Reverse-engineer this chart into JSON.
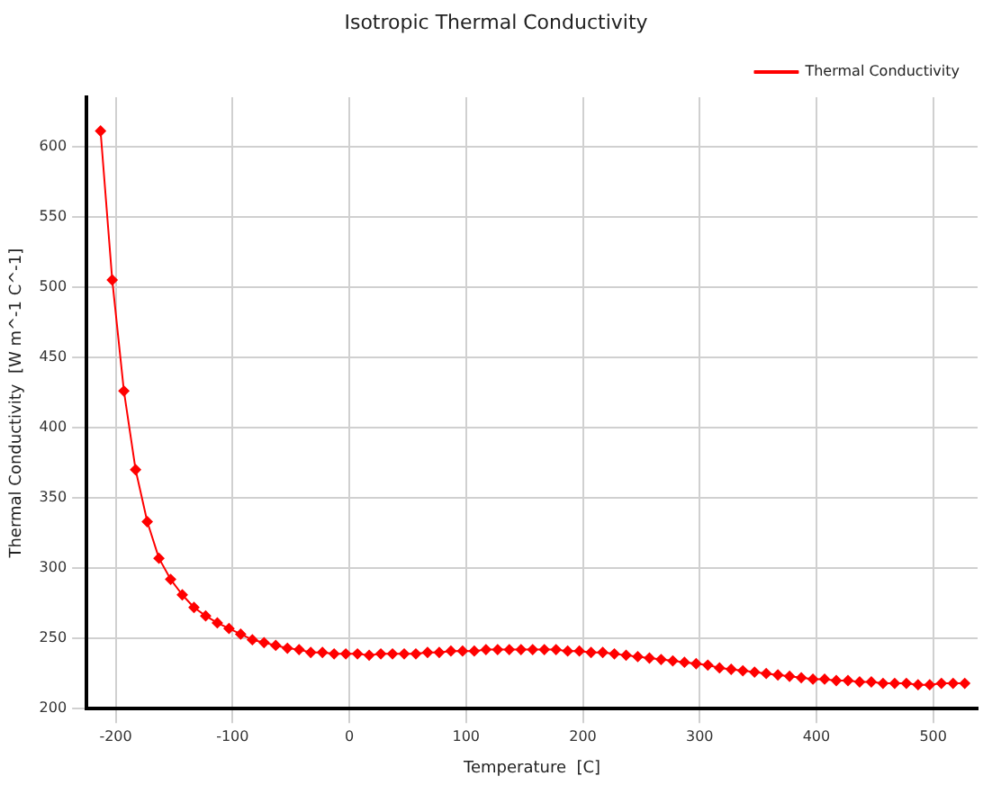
{
  "chart_data": {
    "type": "line",
    "title": "Isotropic Thermal Conductivity",
    "xlabel": "Temperature  [C]",
    "ylabel": "Thermal Conductivity  [W m^-1 C^-1]",
    "x": [
      -213,
      -203,
      -193,
      -183,
      -173,
      -163,
      -153,
      -143,
      -133,
      -123,
      -113,
      -103,
      -93,
      -83,
      -73,
      -63,
      -53,
      -43,
      -33,
      -23,
      -13,
      -3,
      7,
      17,
      27,
      37,
      47,
      57,
      67,
      77,
      87,
      97,
      107,
      117,
      127,
      137,
      147,
      157,
      167,
      177,
      187,
      197,
      207,
      217,
      227,
      237,
      247,
      257,
      267,
      277,
      287,
      297,
      307,
      317,
      327,
      337,
      347,
      357,
      367,
      377,
      387,
      397,
      407,
      417,
      427,
      437,
      447,
      457,
      467,
      477,
      487,
      497,
      507,
      517,
      527
    ],
    "series": [
      {
        "name": "Thermal Conductivity",
        "color": "#ff0000",
        "values": [
          611,
          505,
          426,
          370,
          333,
          307,
          292,
          281,
          272,
          266,
          261,
          257,
          253,
          249,
          247,
          245,
          243,
          242,
          240,
          240,
          239,
          239,
          239,
          238,
          239,
          239,
          239,
          239,
          240,
          240,
          241,
          241,
          241,
          242,
          242,
          242,
          242,
          242,
          242,
          242,
          241,
          241,
          240,
          240,
          239,
          238,
          237,
          236,
          235,
          234,
          233,
          232,
          231,
          229,
          228,
          227,
          226,
          225,
          224,
          223,
          222,
          221,
          221,
          220,
          220,
          219,
          219,
          218,
          218,
          218,
          217,
          217,
          218,
          218,
          218
        ]
      }
    ],
    "xlim": [
      -225,
      538
    ],
    "ylim": [
      200,
      635
    ],
    "xticks": [
      -200,
      -100,
      0,
      100,
      200,
      300,
      400,
      500
    ],
    "yticks": [
      200,
      250,
      300,
      350,
      400,
      450,
      500,
      550,
      600
    ],
    "grid": true,
    "legend": "top right",
    "marker": "diamond",
    "line_style": "solid"
  }
}
